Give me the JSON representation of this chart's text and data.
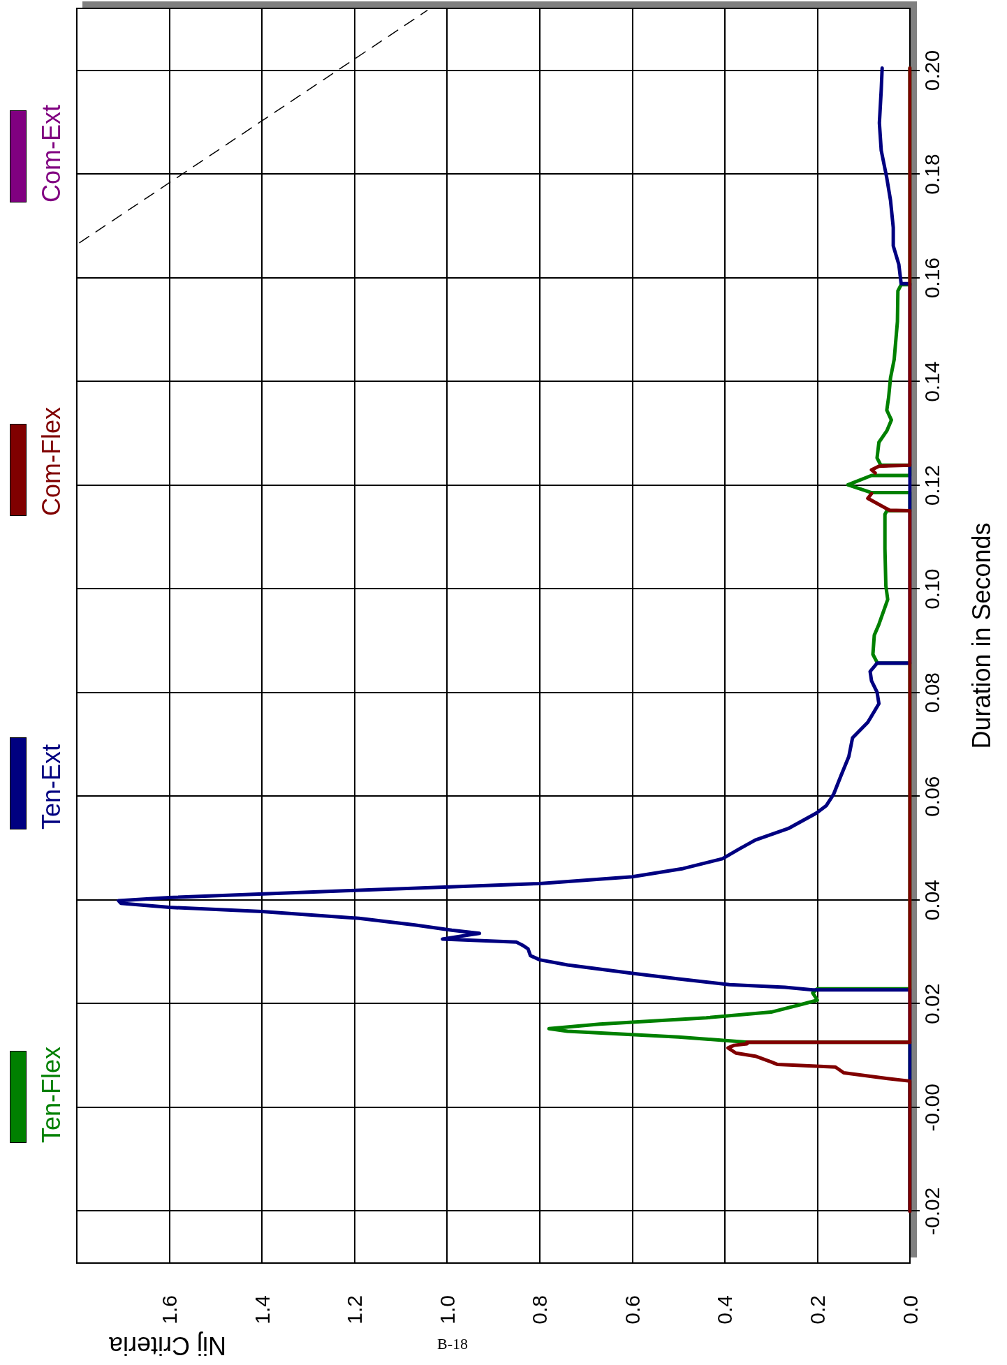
{
  "chart_data": {
    "type": "line",
    "xlabel": "Nij Criteria",
    "ylabel": "Duration in Seconds",
    "annotations": [
      "B-18"
    ],
    "xlim": [
      1.8,
      0
    ],
    "ylim": [
      -0.03,
      0.212
    ],
    "xticks": [
      {
        "value": 1.6,
        "label": "1.6"
      },
      {
        "value": 1.4,
        "label": "1.4"
      },
      {
        "value": 1.2,
        "label": "1.2"
      },
      {
        "value": 1.0,
        "label": "1.0"
      },
      {
        "value": 0.8,
        "label": "0.8"
      },
      {
        "value": 0.6,
        "label": "0.6"
      },
      {
        "value": 0.4,
        "label": "0.4"
      },
      {
        "value": 0.2,
        "label": "0.2"
      },
      {
        "value": 0,
        "label": "0.0"
      }
    ],
    "yticks": [
      {
        "value": -0.02,
        "label": "-0.02"
      },
      {
        "value": 0,
        "label": "-0.00"
      },
      {
        "value": 0.02,
        "label": "0.02"
      },
      {
        "value": 0.04,
        "label": "0.04"
      },
      {
        "value": 0.06,
        "label": "0.06"
      },
      {
        "value": 0.08,
        "label": "0.08"
      },
      {
        "value": 0.1,
        "label": "0.10"
      },
      {
        "value": 0.12,
        "label": "0.12"
      },
      {
        "value": 0.14,
        "label": "0.14"
      },
      {
        "value": 0.16,
        "label": "0.16"
      },
      {
        "value": 0.18,
        "label": "0.18"
      },
      {
        "value": 0.2,
        "label": "0.20"
      }
    ],
    "grid": true,
    "legend": "left",
    "series": [
      {
        "name": "Ten-Flex",
        "color": "#008000",
        "values": [
          -0.02,
          0.0126,
          0.0126,
          0.0136,
          0.0147,
          0.0152,
          0.0161,
          0.0173,
          0.0184,
          0.02,
          0.0207,
          0.0221,
          0.0229,
          0.0229,
          0.0857,
          0.0857,
          0.0874,
          0.0911,
          0.0932,
          0.098,
          0.1006,
          0.1078,
          0.1144,
          0.1151,
          0.1151,
          0.1186,
          0.1186,
          0.1201,
          0.1219,
          0.1219,
          0.1239,
          0.1239,
          0.1253,
          0.1283,
          0.1305,
          0.1326,
          0.1345,
          0.137,
          0.1407,
          0.1443,
          0.1516,
          0.1575,
          0.1587,
          0.1587,
          0.2005
        ],
        "x": [
          0,
          0,
          0.35,
          0.5,
          0.74,
          0.78,
          0.67,
          0.44,
          0.3,
          0.23,
          0.2,
          0.21,
          0.2,
          0,
          0,
          0.07,
          0.08,
          0.077,
          0.067,
          0.048,
          0.052,
          0.054,
          0.054,
          0.05,
          0,
          0,
          0.083,
          0.134,
          0.083,
          0,
          0,
          0.063,
          0.071,
          0.067,
          0.05,
          0.04,
          0.05,
          0.046,
          0.042,
          0.034,
          0.027,
          0.026,
          0.019,
          0,
          0
        ]
      },
      {
        "name": "Ten-Ext",
        "color": "#000080",
        "values": [
          -0.02,
          0.0227,
          0.0227,
          0.0232,
          0.0237,
          0.0248,
          0.0259,
          0.0275,
          0.0285,
          0.0293,
          0.0306,
          0.0312,
          0.0319,
          0.0325,
          0.0336,
          0.0342,
          0.0352,
          0.0365,
          0.0378,
          0.0386,
          0.0394,
          0.0399,
          0.0405,
          0.0418,
          0.0432,
          0.0445,
          0.0461,
          0.048,
          0.0498,
          0.0516,
          0.0538,
          0.0568,
          0.0582,
          0.0604,
          0.064,
          0.0677,
          0.0713,
          0.0743,
          0.0779,
          0.0801,
          0.0823,
          0.0841,
          0.0857,
          0.0857,
          0.1589,
          0.1589,
          0.1626,
          0.1662,
          0.1697,
          0.175,
          0.1793,
          0.1846,
          0.1899,
          0.1963,
          0.2005
        ],
        "x": [
          0,
          0,
          0.21,
          0.27,
          0.39,
          0.5,
          0.6,
          0.74,
          0.8,
          0.82,
          0.825,
          0.835,
          0.85,
          1.01,
          0.93,
          0.99,
          1.07,
          1.19,
          1.4,
          1.6,
          1.705,
          1.71,
          1.6,
          1.22,
          0.8,
          0.6,
          0.49,
          0.405,
          0.37,
          0.334,
          0.263,
          0.202,
          0.181,
          0.165,
          0.149,
          0.132,
          0.124,
          0.091,
          0.067,
          0.071,
          0.083,
          0.086,
          0.071,
          0,
          0,
          0.019,
          0.024,
          0.036,
          0.036,
          0.042,
          0.05,
          0.062,
          0.066,
          0.062,
          0.06
        ]
      },
      {
        "name": "Com-Flex",
        "color": "#800000",
        "values": [
          -0.02,
          0.0051,
          0.0056,
          0.0067,
          0.0078,
          0.0083,
          0.0088,
          0.0099,
          0.0105,
          0.0115,
          0.012,
          0.0123,
          0.0126,
          0.0126,
          0.1151,
          0.1152,
          0.1175,
          0.1184,
          null,
          0.1224,
          0.123,
          0.1237,
          0.1239,
          0.2005
        ],
        "x": [
          0,
          0,
          0.048,
          0.143,
          0.161,
          0.286,
          0.3,
          0.334,
          0.376,
          0.393,
          0.38,
          0.352,
          0.352,
          0,
          0,
          0.044,
          0.091,
          0.083,
          null,
          0.075,
          0.083,
          0.067,
          0,
          0
        ]
      },
      {
        "name": "Com-Ext",
        "color": "#800080"
      },
      {
        "color": "#000000",
        "line_style": "dashed",
        "values": [
          0.1668,
          0.2116
        ],
        "x": [
          1.794,
          1.043
        ]
      }
    ]
  }
}
